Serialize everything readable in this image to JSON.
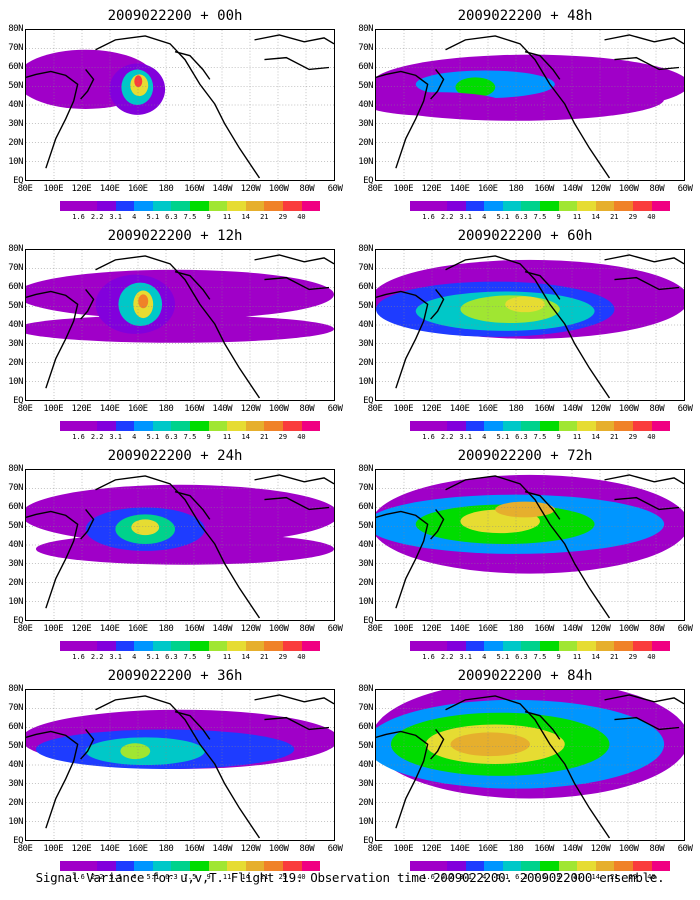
{
  "footer": "Signal Variance for u,v,T. Flight 19. Observation time 2009022200. 2009022000 ensemble.",
  "x_ticks": [
    "80E",
    "100E",
    "120E",
    "140E",
    "160E",
    "180",
    "160W",
    "140W",
    "120W",
    "100W",
    "80W",
    "60W"
  ],
  "y_ticks": [
    "80N",
    "70N",
    "60N",
    "50N",
    "40N",
    "30N",
    "20N",
    "10N",
    "EQ"
  ],
  "colorbar": {
    "labels": [
      "1.6",
      "2.2",
      "3.1",
      "4",
      "5.1",
      "6.3",
      "7.5",
      "9",
      "11",
      "14",
      "21",
      "29",
      "40"
    ],
    "colors": [
      "#a000c8",
      "#8200dc",
      "#1e3cff",
      "#0096ff",
      "#00c8c8",
      "#00d28c",
      "#00dc00",
      "#a0e632",
      "#e6dc32",
      "#e6af2d",
      "#f08228",
      "#fa3c3c",
      "#f00082"
    ]
  },
  "panels": [
    {
      "title": "2009022200 + 00h"
    },
    {
      "title": "2009022200 + 48h"
    },
    {
      "title": "2009022200 + 12h"
    },
    {
      "title": "2009022200 + 60h"
    },
    {
      "title": "2009022200 + 24h"
    },
    {
      "title": "2009022200 + 72h"
    },
    {
      "title": "2009022200 + 36h"
    },
    {
      "title": "2009022200 + 84h"
    }
  ]
}
